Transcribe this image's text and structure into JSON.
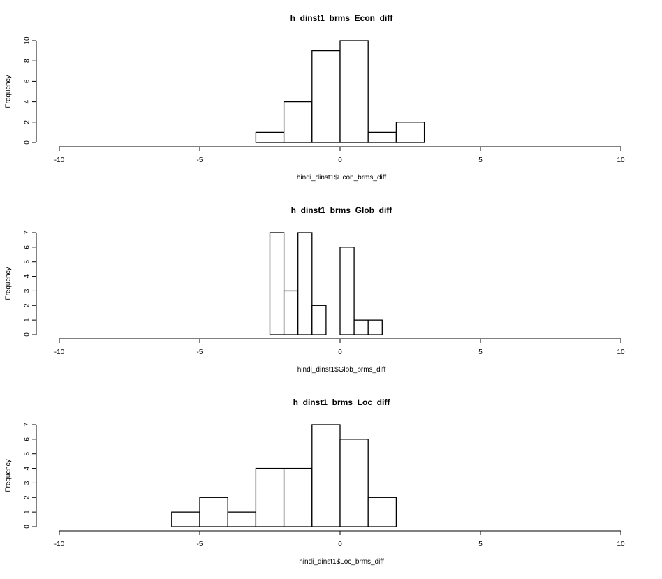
{
  "chart_data": [
    {
      "type": "bar",
      "title": "h_dinst1_brms_Econ_diff",
      "xlabel": "hindi_dinst1$Econ_brms_diff",
      "ylabel": "Frequency",
      "xlim": [
        -10,
        10
      ],
      "ylim": [
        0,
        10
      ],
      "x_ticks": [
        "-10",
        "-5",
        "0",
        "5",
        "10"
      ],
      "y_ticks": [
        "0",
        "2",
        "4",
        "6",
        "8",
        "10"
      ],
      "bin_edges": [
        -3,
        -2,
        -1,
        0,
        1,
        2,
        3
      ],
      "values": [
        1,
        4,
        9,
        10,
        1,
        2
      ]
    },
    {
      "type": "bar",
      "title": "h_dinst1_brms_Glob_diff",
      "xlabel": "hindi_dinst1$Glob_brms_diff",
      "ylabel": "Frequency",
      "xlim": [
        -10,
        10
      ],
      "ylim": [
        0,
        7
      ],
      "x_ticks": [
        "-10",
        "-5",
        "0",
        "5",
        "10"
      ],
      "y_ticks": [
        "0",
        "1",
        "2",
        "3",
        "4",
        "5",
        "6",
        "7"
      ],
      "bin_edges": [
        -2.5,
        -2,
        -1.5,
        -1,
        -0.5,
        0,
        0.5,
        1,
        1.5
      ],
      "values": [
        7,
        3,
        7,
        2,
        0,
        6,
        1,
        1
      ]
    },
    {
      "type": "bar",
      "title": "h_dinst1_brms_Loc_diff",
      "xlabel": "hindi_dinst1$Loc_brms_diff",
      "ylabel": "Frequency",
      "xlim": [
        -10,
        10
      ],
      "ylim": [
        0,
        7
      ],
      "x_ticks": [
        "-10",
        "-5",
        "0",
        "5",
        "10"
      ],
      "y_ticks": [
        "0",
        "1",
        "2",
        "3",
        "4",
        "5",
        "6",
        "7"
      ],
      "bin_edges": [
        -6,
        -5,
        -4,
        -3,
        -2,
        -1,
        0,
        1,
        2
      ],
      "values": [
        1,
        2,
        1,
        4,
        4,
        7,
        6,
        2
      ]
    }
  ]
}
